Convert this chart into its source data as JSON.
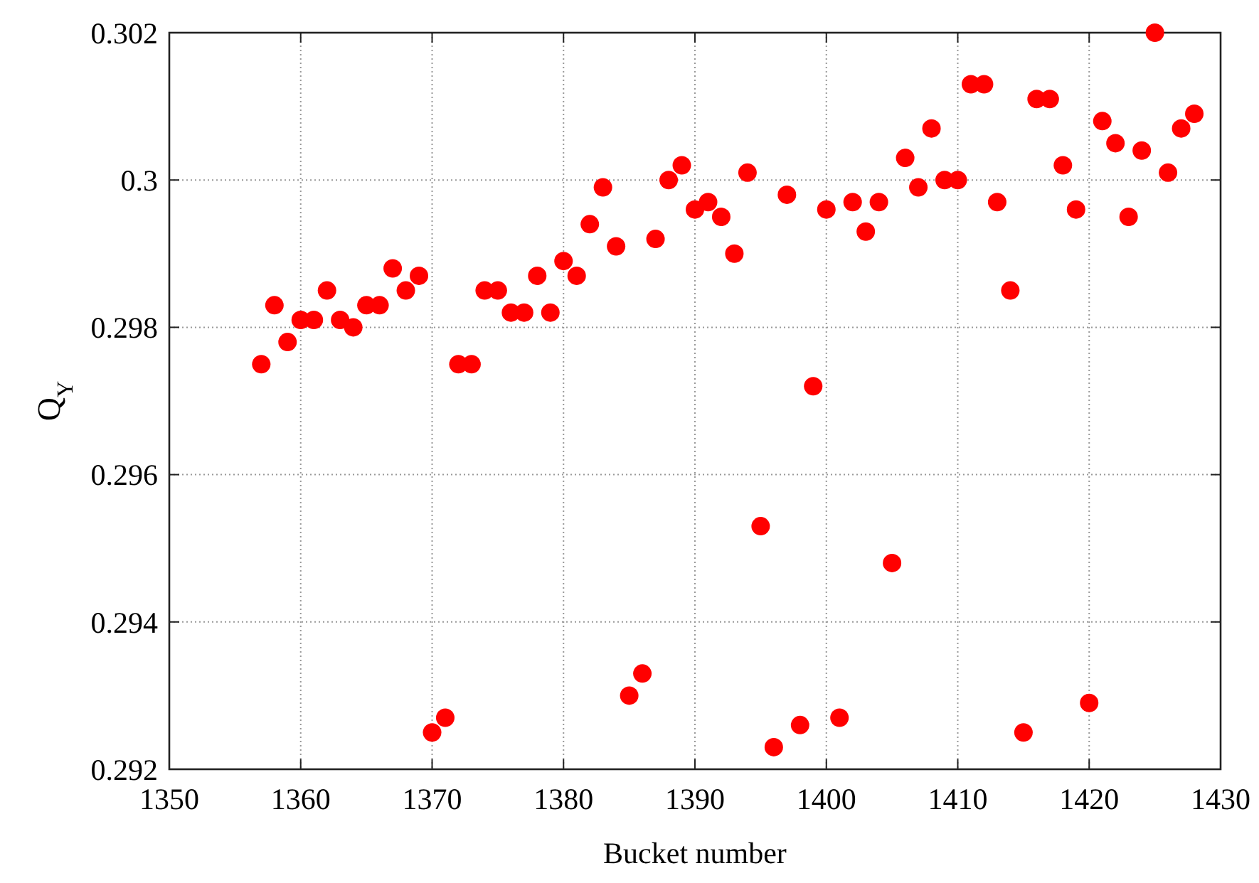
{
  "chart_data": {
    "type": "scatter",
    "xlabel": "Bucket number",
    "ylabel": "Q$_{Y}$",
    "x": [
      1357,
      1358,
      1359,
      1360,
      1361,
      1362,
      1363,
      1364,
      1365,
      1366,
      1367,
      1368,
      1369,
      1370,
      1371,
      1372,
      1373,
      1374,
      1375,
      1376,
      1377,
      1378,
      1379,
      1380,
      1381,
      1382,
      1383,
      1384,
      1385,
      1386,
      1387,
      1388,
      1389,
      1390,
      1391,
      1392,
      1393,
      1394,
      1395,
      1396,
      1397,
      1398,
      1399,
      1400,
      1401,
      1402,
      1403,
      1404,
      1405,
      1406,
      1407,
      1408,
      1409,
      1410,
      1411,
      1412,
      1413,
      1414,
      1415,
      1416,
      1417,
      1418,
      1419,
      1420,
      1421,
      1422,
      1423,
      1424,
      1425,
      1426,
      1427,
      1428
    ],
    "series": [
      {
        "color": "#ff0000",
        "values": [
          0.2975,
          0.2983,
          0.2978,
          0.2981,
          0.2981,
          0.2985,
          0.2981,
          0.298,
          0.2983,
          0.2983,
          0.2988,
          0.2985,
          0.2987,
          0.2925,
          0.2927,
          0.2975,
          0.2975,
          0.2985,
          0.2985,
          0.2982,
          0.2982,
          0.2987,
          0.2982,
          0.2989,
          0.2987,
          0.2994,
          0.2999,
          0.2991,
          0.293,
          0.2933,
          0.2992,
          0.3,
          0.3002,
          0.2996,
          0.2997,
          0.2995,
          0.299,
          0.3001,
          0.2953,
          0.2923,
          0.2998,
          0.2926,
          0.2972,
          0.2996,
          0.2927,
          0.2997,
          0.2993,
          0.2997,
          0.2948,
          0.3003,
          0.2999,
          0.3007,
          0.3,
          0.3,
          0.3013,
          0.3013,
          0.2997,
          0.2985,
          0.2925,
          0.3011,
          0.3011,
          0.3002,
          0.2996,
          0.2929,
          0.3008,
          0.3005,
          0.2995,
          0.3004,
          0.302,
          0.3001,
          0.3007,
          0.3009
        ]
      }
    ],
    "xlim": [
      1350,
      1430
    ],
    "xticks": [
      1350,
      1360,
      1370,
      1380,
      1390,
      1400,
      1410,
      1420,
      1430
    ],
    "ylim": [
      0.292,
      0.302
    ],
    "yticks": [
      0.292,
      0.294,
      0.296,
      0.298,
      {
        "value": 0.3,
        "label": "0.3"
      },
      0.302
    ],
    "grid": true,
    "marker": "circle"
  }
}
